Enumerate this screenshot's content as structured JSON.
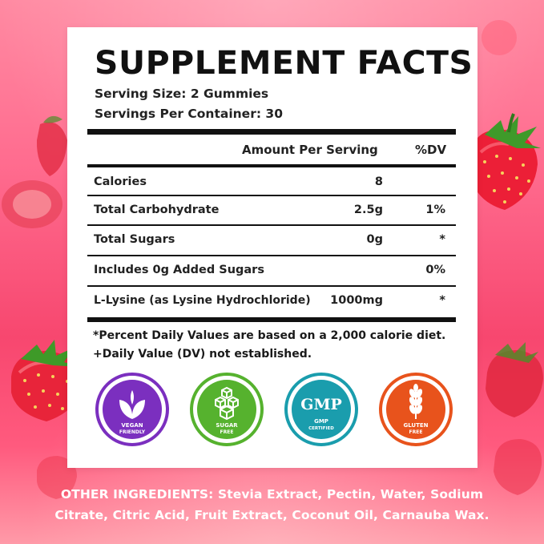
{
  "header": {
    "title": "SUPPLEMENT FACTS",
    "serving_size": "Serving Size: 2 Gummies",
    "servings_per_container": "Servings Per Container: 30"
  },
  "table": {
    "col_amount": "Amount Per Serving",
    "col_dv": "%DV",
    "rows": [
      {
        "name": "Calories",
        "amount": "8",
        "dv": ""
      },
      {
        "name": "Total Carbohydrate",
        "amount": "2.5g",
        "dv": "1%"
      },
      {
        "name": "Total Sugars",
        "amount": "0g",
        "dv": "*"
      },
      {
        "name": "Includes 0g Added Sugars",
        "amount": "",
        "dv": "0%"
      },
      {
        "name": "L-Lysine (as Lysine Hydrochloride)",
        "amount": "1000mg",
        "dv": "*"
      }
    ]
  },
  "footnotes": {
    "line1": "*Percent Daily Values are based on a 2,000 calorie diet.",
    "line2": "+Daily Value (DV) not established."
  },
  "badges": [
    {
      "icon": "vegan-leaf-icon",
      "text1": "VEGAN",
      "text2": "FRIENDLY",
      "color": "#7b2fbf"
    },
    {
      "icon": "sugar-cubes-icon",
      "text1": "SUGAR",
      "text2": "FREE",
      "color": "#56b22e"
    },
    {
      "icon": "gmp-icon",
      "big": "GMP",
      "text1": "GMP",
      "text2": "CERTIFIED",
      "color": "#1a9dad"
    },
    {
      "icon": "wheat-icon",
      "text1": "GLUTEN",
      "text2": "FREE",
      "color": "#e8531c"
    }
  ],
  "other_ingredients": {
    "label": "OTHER INGREDIENTS:",
    "line1_rest": " Stevia Extract, Pectin, Water, Sodium",
    "line2": "Citrate, Citric Acid, Fruit Extract, Coconut Oil, Carnauba Wax."
  }
}
